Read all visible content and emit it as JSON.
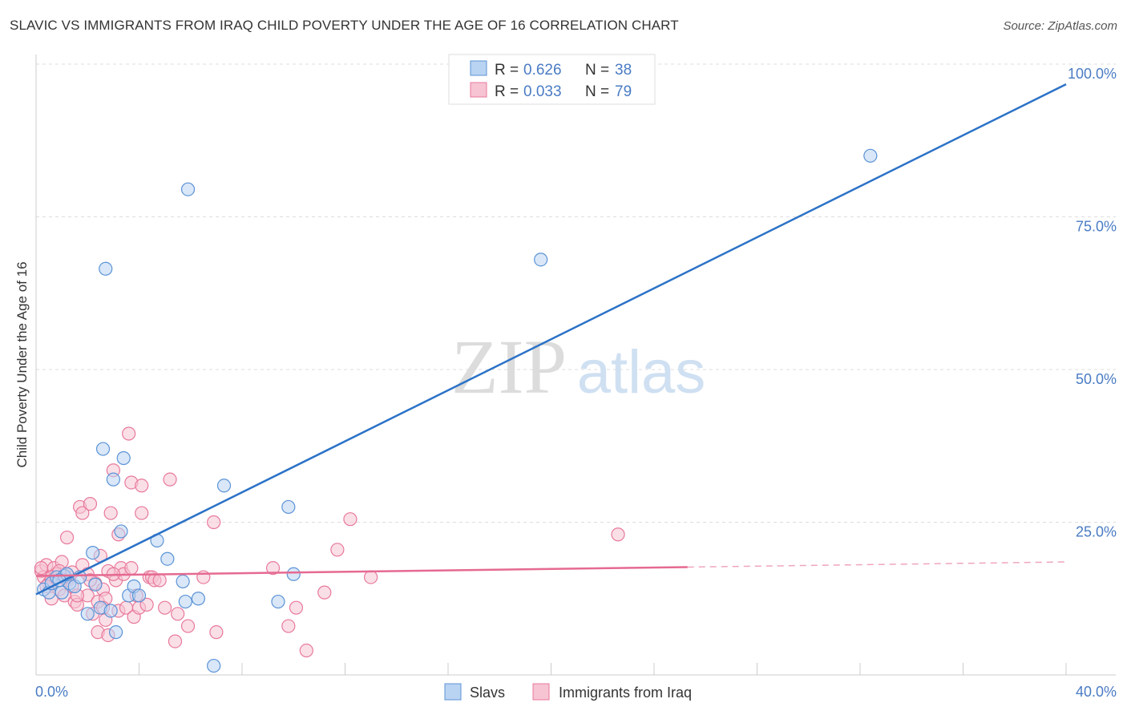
{
  "title": "SLAVIC VS IMMIGRANTS FROM IRAQ CHILD POVERTY UNDER THE AGE OF 16 CORRELATION CHART",
  "source": "Source: ZipAtlas.com",
  "watermark": {
    "zip": "ZIP",
    "atlas": "atlas"
  },
  "colors": {
    "blue": "#5b93d6",
    "blue_fill": "#b9d3f2",
    "blue_line": "#2b72c7",
    "pink": "#e8799b",
    "pink_fill": "#f6c4d3",
    "pink_line": "#e56a91",
    "axis_text": "#4a7cc4"
  },
  "legend": {
    "rows": [
      {
        "swatch": "blue",
        "r_label": "R = ",
        "r_value": "0.626",
        "n_label": "N = ",
        "n_value": "38"
      },
      {
        "swatch": "pink",
        "r_label": "R = ",
        "r_value": "0.033",
        "n_label": "N = ",
        "n_value": "79"
      }
    ]
  },
  "bottom_legend": [
    {
      "label": "Slavs",
      "swatch": "blue"
    },
    {
      "label": "Immigrants from Iraq",
      "swatch": "pink"
    }
  ],
  "chart_data": {
    "type": "scatter",
    "xlabel": "",
    "ylabel": "Child Poverty Under the Age of 16",
    "xlim": [
      0,
      40
    ],
    "ylim": [
      0,
      100
    ],
    "x_tick_labels": [
      "0.0%",
      "40.0%"
    ],
    "y_tick_labels": [
      "25.0%",
      "50.0%",
      "75.0%",
      "100.0%"
    ],
    "y_ticks": [
      25,
      50,
      75,
      100
    ],
    "grid": true,
    "series": [
      {
        "name": "Slavs",
        "color": "blue",
        "trend": {
          "x0": 0,
          "y0": 13.2,
          "x1": 40,
          "y1": 96.7,
          "solid_to": 40
        },
        "points": [
          [
            0.3,
            14
          ],
          [
            0.5,
            13.5
          ],
          [
            0.6,
            15
          ],
          [
            0.8,
            16
          ],
          [
            1.0,
            13.5
          ],
          [
            1.1,
            16.2
          ],
          [
            1.3,
            15
          ],
          [
            1.5,
            14.5
          ],
          [
            1.7,
            16
          ],
          [
            2.0,
            10
          ],
          [
            2.2,
            20
          ],
          [
            2.5,
            11
          ],
          [
            2.6,
            37
          ],
          [
            2.7,
            66.5
          ],
          [
            3.0,
            32
          ],
          [
            3.1,
            7
          ],
          [
            3.3,
            23.5
          ],
          [
            3.4,
            35.5
          ],
          [
            3.6,
            13
          ],
          [
            3.8,
            14.5
          ],
          [
            4.0,
            13
          ],
          [
            4.7,
            22
          ],
          [
            5.1,
            19
          ],
          [
            5.7,
            15.3
          ],
          [
            5.8,
            12
          ],
          [
            5.9,
            79.5
          ],
          [
            6.3,
            12.5
          ],
          [
            6.9,
            1.5
          ],
          [
            7.3,
            31
          ],
          [
            9.4,
            12
          ],
          [
            9.8,
            27.5
          ],
          [
            10.0,
            16.5
          ],
          [
            19.6,
            68
          ],
          [
            32.4,
            85
          ],
          [
            2.3,
            14.8
          ],
          [
            1.2,
            16.5
          ],
          [
            0.9,
            15.5
          ],
          [
            2.9,
            10.5
          ]
        ]
      },
      {
        "name": "Immigrants from Iraq",
        "color": "pink",
        "trend": {
          "x0": 0,
          "y0": 16.2,
          "x1": 40,
          "y1": 18.5,
          "solid_to": 25.3
        },
        "points": [
          [
            0.2,
            17
          ],
          [
            0.3,
            16
          ],
          [
            0.4,
            18
          ],
          [
            0.5,
            15
          ],
          [
            0.6,
            12.5
          ],
          [
            0.7,
            17.5
          ],
          [
            0.8,
            16.5
          ],
          [
            0.9,
            14
          ],
          [
            1.0,
            18.5
          ],
          [
            1.1,
            13
          ],
          [
            1.2,
            15.5
          ],
          [
            1.2,
            22.5
          ],
          [
            1.3,
            16
          ],
          [
            1.4,
            14.5
          ],
          [
            1.5,
            12
          ],
          [
            1.6,
            11.5
          ],
          [
            1.7,
            27.5
          ],
          [
            1.8,
            18
          ],
          [
            1.8,
            26.5
          ],
          [
            2.0,
            16.5
          ],
          [
            2.0,
            13
          ],
          [
            2.1,
            28
          ],
          [
            2.2,
            10
          ],
          [
            2.3,
            15
          ],
          [
            2.4,
            12
          ],
          [
            2.4,
            7
          ],
          [
            2.5,
            19.5
          ],
          [
            2.6,
            14
          ],
          [
            2.7,
            9
          ],
          [
            2.7,
            12.5
          ],
          [
            2.8,
            6.5
          ],
          [
            2.8,
            17
          ],
          [
            2.9,
            26.5
          ],
          [
            3.0,
            33.5
          ],
          [
            3.1,
            15.5
          ],
          [
            3.2,
            10.5
          ],
          [
            3.2,
            23
          ],
          [
            3.3,
            17.5
          ],
          [
            3.4,
            16.5
          ],
          [
            3.5,
            11
          ],
          [
            3.6,
            39.5
          ],
          [
            3.7,
            31.5
          ],
          [
            3.7,
            17.5
          ],
          [
            3.8,
            9.5
          ],
          [
            3.9,
            13
          ],
          [
            4.0,
            11
          ],
          [
            4.1,
            26.5
          ],
          [
            4.1,
            31
          ],
          [
            4.3,
            11.5
          ],
          [
            4.4,
            16
          ],
          [
            4.5,
            16
          ],
          [
            4.6,
            15.5
          ],
          [
            4.8,
            15.5
          ],
          [
            5.0,
            11
          ],
          [
            5.2,
            32
          ],
          [
            5.4,
            5.5
          ],
          [
            5.5,
            10
          ],
          [
            5.9,
            8
          ],
          [
            6.5,
            16
          ],
          [
            6.9,
            25
          ],
          [
            7.0,
            7
          ],
          [
            9.2,
            17.5
          ],
          [
            9.8,
            8
          ],
          [
            10.1,
            11
          ],
          [
            10.5,
            4
          ],
          [
            11.2,
            13.5
          ],
          [
            11.7,
            20.5
          ],
          [
            12.2,
            25.5
          ],
          [
            13.0,
            16
          ],
          [
            22.6,
            23
          ],
          [
            0.2,
            17.5
          ],
          [
            0.6,
            16
          ],
          [
            0.9,
            17
          ],
          [
            1.4,
            16.8
          ],
          [
            2.1,
            15.5
          ],
          [
            3.0,
            16.5
          ],
          [
            0.4,
            14.5
          ],
          [
            1.6,
            13
          ],
          [
            2.6,
            11
          ]
        ]
      }
    ]
  }
}
